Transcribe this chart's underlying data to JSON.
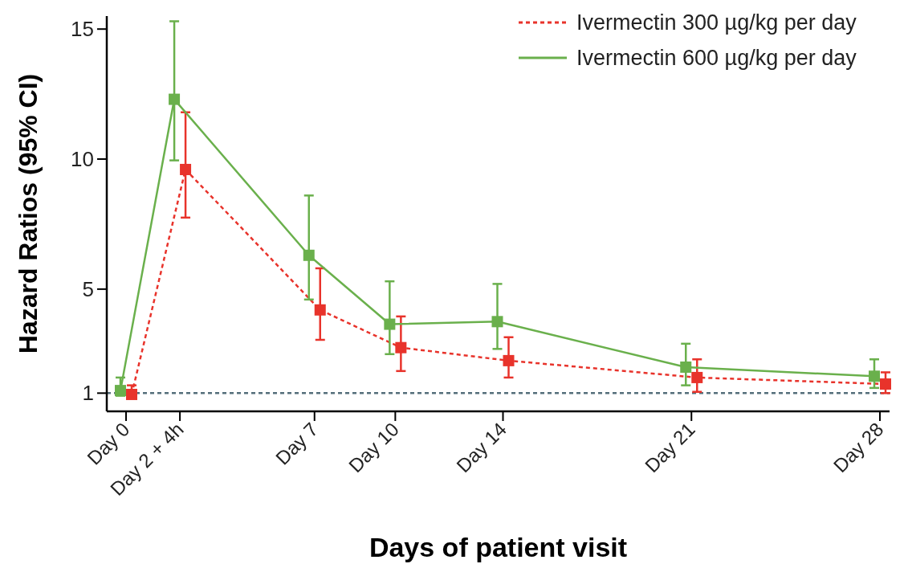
{
  "chart_data": {
    "type": "line",
    "xlabel": "Days of patient visit",
    "ylabel": "Hazard Ratios (95% CI)",
    "categories": [
      "Day 0",
      null,
      "Day 2 + 4h",
      null,
      null,
      null,
      null,
      "Day 7",
      null,
      null,
      "Day 10",
      null,
      null,
      null,
      "Day 14",
      null,
      null,
      null,
      null,
      null,
      null,
      "Day 21",
      null,
      null,
      null,
      null,
      null,
      null,
      "Day 28"
    ],
    "ylim": [
      0.3,
      15.5
    ],
    "yticks": [
      1,
      5,
      10,
      15
    ],
    "series": [
      {
        "name": "Ivermectin 300 µg/kg per day",
        "color": "#e8332b",
        "line_style": "dashed",
        "marker": "square",
        "values": [
          0.95,
          null,
          9.6,
          null,
          null,
          null,
          null,
          4.2,
          null,
          null,
          2.75,
          null,
          null,
          null,
          2.25,
          null,
          null,
          null,
          null,
          null,
          null,
          1.6,
          null,
          null,
          null,
          null,
          null,
          null,
          1.35
        ],
        "errors": [
          [
            0.8,
            1.3
          ],
          null,
          [
            7.75,
            11.8
          ],
          null,
          null,
          null,
          null,
          [
            3.05,
            5.8
          ],
          null,
          null,
          [
            1.85,
            3.95
          ],
          null,
          null,
          null,
          [
            1.6,
            3.15
          ],
          null,
          null,
          null,
          null,
          null,
          null,
          [
            1.05,
            2.3
          ],
          null,
          null,
          null,
          null,
          null,
          null,
          [
            1.0,
            1.8
          ]
        ]
      },
      {
        "name": "Ivermectin 600 µg/kg per day",
        "color": "#6ab04c",
        "line_style": "solid",
        "marker": "square",
        "values": [
          1.1,
          null,
          12.3,
          null,
          null,
          null,
          null,
          6.3,
          null,
          null,
          3.65,
          null,
          null,
          null,
          3.75,
          null,
          null,
          null,
          null,
          null,
          null,
          2.0,
          null,
          null,
          null,
          null,
          null,
          null,
          1.65
        ],
        "errors": [
          [
            0.9,
            1.6
          ],
          null,
          [
            9.95,
            15.3
          ],
          null,
          null,
          null,
          null,
          [
            4.6,
            8.6
          ],
          null,
          null,
          [
            2.5,
            5.3
          ],
          null,
          null,
          null,
          [
            2.7,
            5.2
          ],
          null,
          null,
          null,
          null,
          null,
          null,
          [
            1.3,
            2.9
          ],
          null,
          null,
          null,
          null,
          null,
          null,
          [
            1.2,
            2.3
          ]
        ]
      }
    ],
    "ref_lines": [
      {
        "axis": "y",
        "value": 1,
        "color": "#546e7a",
        "line_style": "dashed"
      }
    ],
    "legend": "top right",
    "grid": false
  }
}
